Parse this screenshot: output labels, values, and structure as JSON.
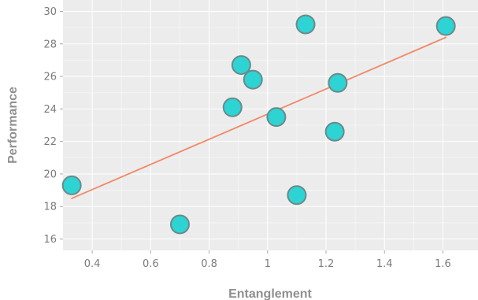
{
  "chart_data": {
    "type": "scatter",
    "title": "",
    "xlabel": "Entanglement",
    "ylabel": "Performance",
    "xlim": [
      0.3,
      1.72
    ],
    "ylim": [
      15.3,
      30.7
    ],
    "x_ticks": [
      "0.4",
      "0.6",
      "0.8",
      "1",
      "1.2",
      "1.4",
      "1.6"
    ],
    "y_ticks": [
      "16",
      "18",
      "20",
      "22",
      "24",
      "26",
      "28",
      "30"
    ],
    "points": [
      {
        "x": 0.33,
        "y": 19.3
      },
      {
        "x": 0.7,
        "y": 16.9
      },
      {
        "x": 0.88,
        "y": 24.1
      },
      {
        "x": 0.91,
        "y": 26.7
      },
      {
        "x": 0.95,
        "y": 25.8
      },
      {
        "x": 1.03,
        "y": 23.5
      },
      {
        "x": 1.1,
        "y": 18.7
      },
      {
        "x": 1.13,
        "y": 29.2
      },
      {
        "x": 1.23,
        "y": 22.6
      },
      {
        "x": 1.24,
        "y": 25.6
      },
      {
        "x": 1.61,
        "y": 29.1
      }
    ],
    "trendline": {
      "x": [
        0.33,
        1.61
      ],
      "y": [
        18.5,
        28.4
      ]
    },
    "grid": true,
    "colors": {
      "plot_background": "#ececec",
      "grid": "#ffffff",
      "point_fill": "#2ed3d3",
      "point_stroke": "#6a8a8a",
      "trendline": "#f08a67"
    }
  }
}
